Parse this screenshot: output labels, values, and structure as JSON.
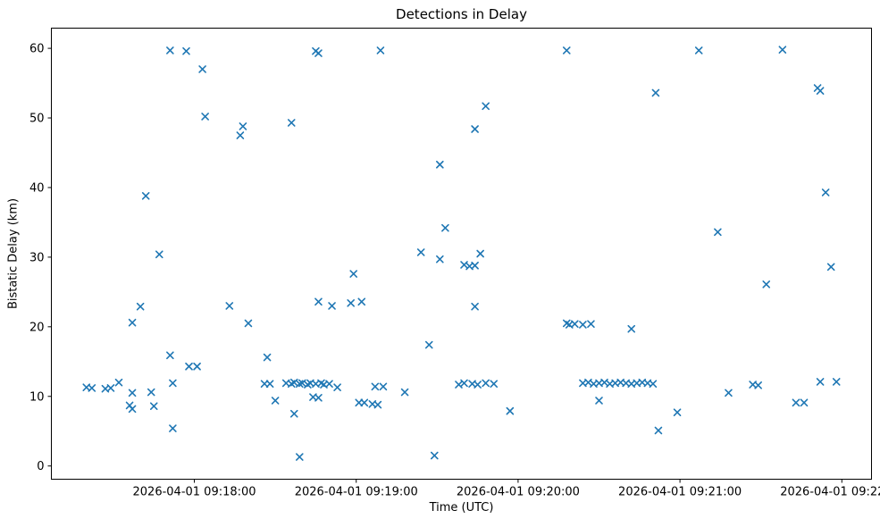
{
  "chart_data": {
    "type": "scatter",
    "title": "Detections in Delay",
    "xlabel": "Time (UTC)",
    "ylabel": "Bistatic Delay (km)",
    "legend": "none",
    "grid": false,
    "marker": {
      "symbol": "x",
      "color": "#1f77b4",
      "size": 7
    },
    "axis_color": "#000000",
    "x_axis": {
      "date": "2026-04-01",
      "tick_labels": [
        "2026-04-01 09:18:00",
        "2026-04-01 09:19:00",
        "2026-04-01 09:20:00",
        "2026-04-01 09:21:00",
        "2026-04-01 09:22:00"
      ],
      "tick_times": [
        "09:18:00",
        "09:19:00",
        "09:20:00",
        "09:21:00",
        "09:22:00"
      ],
      "range_times": [
        "09:17:07",
        "09:22:11"
      ]
    },
    "y_axis": {
      "ticks": [
        0,
        10,
        20,
        30,
        40,
        50,
        60
      ],
      "range": [
        -1.9,
        62.9
      ]
    },
    "points": [
      [
        "09:17:20",
        11.3
      ],
      [
        "09:17:22",
        11.2
      ],
      [
        "09:17:27",
        11.1
      ],
      [
        "09:17:29",
        11.2
      ],
      [
        "09:17:32",
        12.0
      ],
      [
        "09:17:36",
        8.7
      ],
      [
        "09:17:37",
        8.2
      ],
      [
        "09:17:37",
        10.5
      ],
      [
        "09:17:37",
        20.6
      ],
      [
        "09:17:40",
        22.9
      ],
      [
        "09:17:42",
        38.8
      ],
      [
        "09:17:44",
        10.6
      ],
      [
        "09:17:45",
        8.6
      ],
      [
        "09:17:47",
        30.4
      ],
      [
        "09:17:51",
        59.7
      ],
      [
        "09:17:51",
        15.9
      ],
      [
        "09:17:52",
        11.9
      ],
      [
        "09:17:52",
        5.4
      ],
      [
        "09:17:57",
        59.6
      ],
      [
        "09:17:58",
        14.3
      ],
      [
        "09:18:01",
        14.3
      ],
      [
        "09:18:03",
        57.0
      ],
      [
        "09:18:04",
        50.2
      ],
      [
        "09:18:13",
        23.0
      ],
      [
        "09:18:17",
        47.5
      ],
      [
        "09:18:18",
        48.8
      ],
      [
        "09:18:20",
        20.5
      ],
      [
        "09:18:27",
        15.6
      ],
      [
        "09:18:26",
        11.8
      ],
      [
        "09:18:28",
        11.8
      ],
      [
        "09:18:30",
        9.4
      ],
      [
        "09:18:34",
        11.9
      ],
      [
        "09:18:36",
        11.8
      ],
      [
        "09:18:37",
        12.0
      ],
      [
        "09:18:39",
        11.8
      ],
      [
        "09:18:40",
        11.9
      ],
      [
        "09:18:42",
        11.7
      ],
      [
        "09:18:43",
        11.9
      ],
      [
        "09:18:45",
        11.8
      ],
      [
        "09:18:47",
        11.9
      ],
      [
        "09:18:48",
        11.7
      ],
      [
        "09:18:50",
        11.8
      ],
      [
        "09:18:36",
        49.3
      ],
      [
        "09:18:37",
        7.5
      ],
      [
        "09:18:39",
        1.3
      ],
      [
        "09:18:44",
        9.9
      ],
      [
        "09:18:46",
        9.8
      ],
      [
        "09:18:45",
        59.6
      ],
      [
        "09:18:46",
        59.3
      ],
      [
        "09:18:46",
        23.6
      ],
      [
        "09:18:51",
        23.0
      ],
      [
        "09:18:53",
        11.3
      ],
      [
        "09:18:58",
        23.4
      ],
      [
        "09:18:59",
        27.6
      ],
      [
        "09:19:01",
        9.1
      ],
      [
        "09:19:03",
        9.1
      ],
      [
        "09:19:02",
        23.6
      ],
      [
        "09:19:06",
        8.9
      ],
      [
        "09:19:08",
        8.8
      ],
      [
        "09:19:07",
        11.4
      ],
      [
        "09:19:10",
        11.4
      ],
      [
        "09:19:09",
        59.7
      ],
      [
        "09:19:18",
        10.6
      ],
      [
        "09:19:24",
        30.7
      ],
      [
        "09:19:27",
        17.4
      ],
      [
        "09:19:29",
        1.5
      ],
      [
        "09:19:31",
        43.3
      ],
      [
        "09:19:31",
        29.7
      ],
      [
        "09:19:33",
        34.2
      ],
      [
        "09:19:38",
        11.7
      ],
      [
        "09:19:40",
        11.9
      ],
      [
        "09:19:43",
        11.8
      ],
      [
        "09:19:45",
        11.7
      ],
      [
        "09:19:48",
        11.9
      ],
      [
        "09:19:51",
        11.8
      ],
      [
        "09:19:40",
        28.9
      ],
      [
        "09:19:42",
        28.7
      ],
      [
        "09:19:44",
        28.8
      ],
      [
        "09:19:44",
        22.9
      ],
      [
        "09:19:44",
        48.4
      ],
      [
        "09:19:46",
        30.5
      ],
      [
        "09:19:48",
        51.7
      ],
      [
        "09:19:57",
        7.9
      ],
      [
        "09:20:18",
        59.7
      ],
      [
        "09:20:18",
        20.5
      ],
      [
        "09:20:19",
        20.3
      ],
      [
        "09:20:21",
        20.4
      ],
      [
        "09:20:24",
        20.3
      ],
      [
        "09:20:27",
        20.4
      ],
      [
        "09:20:24",
        11.9
      ],
      [
        "09:20:26",
        12.0
      ],
      [
        "09:20:28",
        11.8
      ],
      [
        "09:20:30",
        11.9
      ],
      [
        "09:20:32",
        12.0
      ],
      [
        "09:20:34",
        11.8
      ],
      [
        "09:20:36",
        11.9
      ],
      [
        "09:20:38",
        12.0
      ],
      [
        "09:20:40",
        11.9
      ],
      [
        "09:20:42",
        11.8
      ],
      [
        "09:20:44",
        11.9
      ],
      [
        "09:20:46",
        12.0
      ],
      [
        "09:20:48",
        11.9
      ],
      [
        "09:20:50",
        11.8
      ],
      [
        "09:20:30",
        9.4
      ],
      [
        "09:20:42",
        19.7
      ],
      [
        "09:20:51",
        53.6
      ],
      [
        "09:20:52",
        5.1
      ],
      [
        "09:20:59",
        7.7
      ],
      [
        "09:21:07",
        59.7
      ],
      [
        "09:21:14",
        33.6
      ],
      [
        "09:21:18",
        10.5
      ],
      [
        "09:21:27",
        11.7
      ],
      [
        "09:21:29",
        11.6
      ],
      [
        "09:21:32",
        26.1
      ],
      [
        "09:21:38",
        59.8
      ],
      [
        "09:21:43",
        9.1
      ],
      [
        "09:21:46",
        9.1
      ],
      [
        "09:21:51",
        54.3
      ],
      [
        "09:21:52",
        53.9
      ],
      [
        "09:21:52",
        12.1
      ],
      [
        "09:21:54",
        39.3
      ],
      [
        "09:21:56",
        28.6
      ],
      [
        "09:21:58",
        12.1
      ]
    ]
  }
}
